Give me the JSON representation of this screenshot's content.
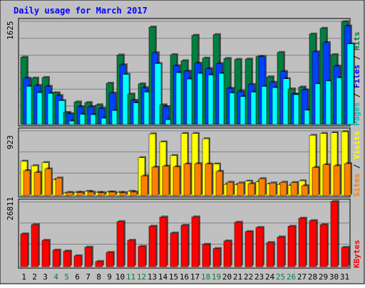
{
  "chart_data": {
    "type": "bar",
    "title": "Daily usage for March 2017",
    "categories": [
      "1",
      "2",
      "3",
      "4",
      "5",
      "6",
      "7",
      "8",
      "9",
      "10",
      "11",
      "12",
      "13",
      "14",
      "15",
      "16",
      "17",
      "18",
      "19",
      "20",
      "21",
      "22",
      "23",
      "24",
      "25",
      "26",
      "27",
      "28",
      "29",
      "30",
      "31"
    ],
    "weekend_days": [
      "4",
      "5",
      "11",
      "12",
      "18",
      "19",
      "25",
      "26"
    ],
    "grid": true,
    "colors": {
      "background": "#c0c0c0",
      "title": "#0000ff",
      "hits": "#008040",
      "files": "#0040ff",
      "pages": "#00ffff",
      "visits": "#ffff00",
      "sites": "#ff8000",
      "kbytes": "#ff0000",
      "weekday_label": "#000000",
      "weekend_label": "#008040"
    },
    "panels": [
      {
        "id": "hits-files-pages",
        "ymax_label": "1625",
        "ymax": 1625,
        "legend": [
          {
            "text": "Pages",
            "color": "#00c0c0"
          },
          {
            "text": " / ",
            "color": "#000000"
          },
          {
            "text": "Files",
            "color": "#0000ff"
          },
          {
            "text": " / ",
            "color": "#000000"
          },
          {
            "text": "Hits",
            "color": "#008040"
          }
        ],
        "series": [
          {
            "key": "hits",
            "values": [
              1060,
              730,
              740,
              500,
              190,
              355,
              345,
              310,
              650,
              1095,
              480,
              640,
              1535,
              310,
              1100,
              1005,
              1405,
              1045,
              1415,
              1040,
              1025,
              1030,
              1070,
              750,
              1135,
              560,
              590,
              1425,
              1515,
              1100,
              1620
            ]
          },
          {
            "key": "files",
            "values": [
              730,
              615,
              600,
              455,
              170,
              280,
              280,
              255,
              495,
              940,
              380,
              580,
              1130,
              280,
              925,
              840,
              965,
              880,
              960,
              570,
              525,
              630,
              1070,
              665,
              835,
              480,
              545,
              1145,
              1290,
              920,
              1550
            ]
          },
          {
            "key": "pages",
            "values": [
              600,
              500,
              490,
              375,
              55,
              160,
              155,
              100,
              220,
              790,
              340,
              510,
              960,
              75,
              815,
              715,
              805,
              780,
              805,
              495,
              440,
              510,
              600,
              580,
              720,
              470,
              225,
              640,
              685,
              735,
              1270
            ]
          }
        ]
      },
      {
        "id": "visits-sites",
        "ymax_label": "923",
        "ymax": 923,
        "legend": [
          {
            "text": "Sites",
            "color": "#ff8000"
          },
          {
            "text": " / ",
            "color": "#000000"
          },
          {
            "text": "Visits",
            "color": "#ffff00"
          }
        ],
        "series": [
          {
            "key": "visits",
            "values": [
              490,
              425,
              470,
              225,
              35,
              45,
              60,
              45,
              50,
              45,
              60,
              540,
              880,
              765,
              570,
              885,
              885,
              810,
              450,
              160,
              155,
              205,
              195,
              165,
              160,
              145,
              210,
              860,
              885,
              895,
              910
            ]
          },
          {
            "key": "sites",
            "values": [
              355,
              330,
              380,
              250,
              45,
              45,
              50,
              40,
              50,
              40,
              50,
              280,
              405,
              420,
              410,
              450,
              455,
              450,
              345,
              190,
              180,
              170,
              240,
              180,
              190,
              185,
              140,
              400,
              440,
              425,
              455
            ]
          }
        ]
      },
      {
        "id": "kbytes",
        "ymax_label": "26811",
        "ymax": 26811,
        "legend": [
          {
            "text": "KBytes",
            "color": "#ff0000"
          }
        ],
        "series": [
          {
            "key": "kbytes",
            "values": [
              13570,
              17410,
              10920,
              6840,
              6470,
              4500,
              8060,
              2150,
              5900,
              18660,
              10910,
              8400,
              16750,
              20570,
              13940,
              17160,
              20620,
              9240,
              7510,
              10650,
              18400,
              14520,
              16240,
              10000,
              12310,
              16740,
              20070,
              19080,
              17410,
              27000,
              8000
            ]
          }
        ]
      }
    ]
  }
}
